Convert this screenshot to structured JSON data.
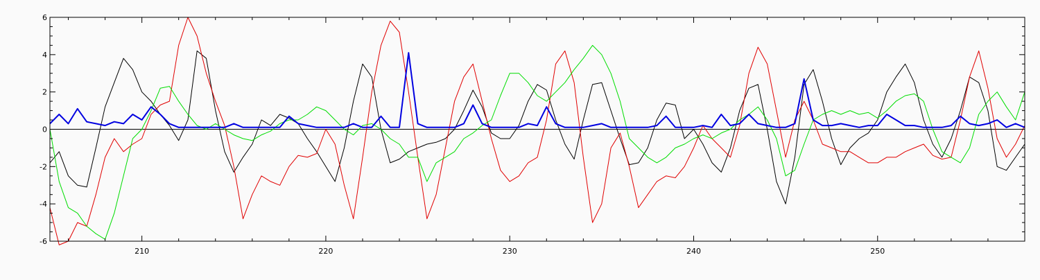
{
  "chart_data": {
    "type": "line",
    "title": "",
    "xlabel": "",
    "ylabel": "",
    "xlim": [
      205,
      258
    ],
    "ylim": [
      -6,
      6
    ],
    "x_ticks": [
      210,
      220,
      230,
      240,
      250
    ],
    "y_ticks": [
      -6,
      -4,
      -2,
      0,
      2,
      4,
      6
    ],
    "grid": false,
    "zero_line": true,
    "colors": {
      "background": "#fafafa",
      "axis": "#000000",
      "black_series": "#000000",
      "red_series": "#e00000",
      "green_series": "#00dd00",
      "blue_series": "#0000e0"
    },
    "series": [
      {
        "color": "#000000",
        "x": [
          205,
          205.5,
          206,
          206.5,
          207,
          207.5,
          208,
          208.5,
          209,
          209.5,
          210,
          210.5,
          211,
          211.5,
          212,
          212.5,
          213,
          213.5,
          214,
          214.5,
          215,
          215.5,
          216,
          216.5,
          217,
          217.5,
          218,
          218.5,
          219,
          219.5,
          220,
          220.5,
          221,
          221.5,
          222,
          222.5,
          223,
          223.5,
          224,
          224.5,
          225,
          225.5,
          226,
          226.5,
          227,
          227.5,
          228,
          228.5,
          229,
          229.5,
          230,
          230.5,
          231,
          231.5,
          232,
          232.5,
          233,
          233.5,
          234,
          234.5,
          235,
          235.5,
          236,
          236.5,
          237,
          237.5,
          238,
          238.5,
          239,
          239.5,
          240,
          240.5,
          241,
          241.5,
          242,
          242.5,
          243,
          243.5,
          244,
          244.5,
          245,
          245.5,
          246,
          246.5,
          247,
          247.5,
          248,
          248.5,
          249,
          249.5,
          250,
          250.5,
          251,
          251.5,
          252,
          252.5,
          253,
          253.5,
          254,
          254.5,
          255,
          255.5,
          256,
          256.5,
          257,
          257.5,
          258
        ],
        "values": [
          -1.8,
          -1.2,
          -2.5,
          -3,
          -3.1,
          -1,
          1.2,
          2.5,
          3.8,
          3.2,
          2,
          1.5,
          0.8,
          0.2,
          -0.6,
          0.5,
          4.2,
          3.8,
          1,
          -1.2,
          -2.3,
          -1.5,
          -0.8,
          0.5,
          0.2,
          0.8,
          0.6,
          0.3,
          -0.5,
          -1.2,
          -2,
          -2.8,
          -1,
          1.5,
          3.5,
          2.8,
          0,
          -1.8,
          -1.6,
          -1.2,
          -1,
          -0.8,
          -0.7,
          -0.5,
          0,
          1,
          2.1,
          1.2,
          -0.2,
          -0.5,
          -0.5,
          0.2,
          1.5,
          2.4,
          2.1,
          0.5,
          -0.8,
          -1.6,
          0.5,
          2.4,
          2.5,
          1,
          -0.5,
          -1.9,
          -1.8,
          -1,
          0.5,
          1.4,
          1.3,
          -0.5,
          0,
          -0.8,
          -1.8,
          -2.3,
          -1,
          1,
          2.2,
          2.4,
          0,
          -2.8,
          -4,
          -1.5,
          2.4,
          3.2,
          1.5,
          -0.5,
          -1.9,
          -1,
          -0.5,
          -0.2,
          0.5,
          2,
          2.8,
          3.5,
          2.5,
          0.5,
          -0.8,
          -1.5,
          -0.5,
          1,
          2.8,
          2.5,
          1,
          -2,
          -2.2,
          -1.5,
          -0.8
        ]
      },
      {
        "color": "#e00000",
        "x": [
          205,
          205.5,
          206,
          206.5,
          207,
          207.5,
          208,
          208.5,
          209,
          209.5,
          210,
          210.5,
          211,
          211.5,
          212,
          212.5,
          213,
          213.5,
          214,
          214.5,
          215,
          215.5,
          216,
          216.5,
          217,
          217.5,
          218,
          218.5,
          219,
          219.5,
          220,
          220.5,
          221,
          221.5,
          222,
          222.5,
          223,
          223.5,
          224,
          224.5,
          225,
          225.5,
          226,
          226.5,
          227,
          227.5,
          228,
          228.5,
          229,
          229.5,
          230,
          230.5,
          231,
          231.5,
          232,
          232.5,
          233,
          233.5,
          234,
          234.5,
          235,
          235.5,
          236,
          236.5,
          237,
          237.5,
          238,
          238.5,
          239,
          239.5,
          240,
          240.5,
          241,
          241.5,
          242,
          242.5,
          243,
          243.5,
          244,
          244.5,
          245,
          245.5,
          246,
          246.5,
          247,
          247.5,
          248,
          248.5,
          249,
          249.5,
          250,
          250.5,
          251,
          251.5,
          252,
          252.5,
          253,
          253.5,
          254,
          254.5,
          255,
          255.5,
          256,
          256.5,
          257,
          257.5,
          258
        ],
        "values": [
          -4.2,
          -6.2,
          -6,
          -5,
          -5.2,
          -3.5,
          -1.5,
          -0.5,
          -1.2,
          -0.8,
          -0.5,
          0.8,
          1.3,
          1.5,
          4.5,
          6,
          5,
          3,
          1.5,
          0.2,
          -2,
          -4.8,
          -3.5,
          -2.5,
          -2.8,
          -3,
          -2,
          -1.4,
          -1.5,
          -1.3,
          0,
          -0.8,
          -3,
          -4.8,
          -1.5,
          2,
          4.5,
          5.8,
          5.2,
          2,
          -1.5,
          -4.8,
          -3.5,
          -1,
          1.5,
          2.8,
          3.5,
          1.5,
          -0.5,
          -2.2,
          -2.8,
          -2.5,
          -1.8,
          -1.5,
          0.5,
          3.5,
          4.2,
          2.5,
          -1.5,
          -5,
          -4,
          -1,
          -0.2,
          -2,
          -4.2,
          -3.5,
          -2.8,
          -2.5,
          -2.6,
          -2,
          -1,
          0.2,
          -0.5,
          -1,
          -1.5,
          0.2,
          3,
          4.4,
          3.5,
          1,
          -1.5,
          0.5,
          1.5,
          0.5,
          -0.8,
          -1,
          -1.2,
          -1.2,
          -1.5,
          -1.8,
          -1.8,
          -1.5,
          -1.5,
          -1.2,
          -1,
          -0.8,
          -1.4,
          -1.6,
          -1.5,
          0.5,
          2.8,
          4.2,
          2.2,
          -0.5,
          -1.5,
          -0.8,
          0.2
        ]
      },
      {
        "color": "#00dd00",
        "x": [
          205,
          205.5,
          206,
          206.5,
          207,
          207.5,
          208,
          208.5,
          209,
          209.5,
          210,
          210.5,
          211,
          211.5,
          212,
          212.5,
          213,
          213.5,
          214,
          214.5,
          215,
          215.5,
          216,
          216.5,
          217,
          217.5,
          218,
          218.5,
          219,
          219.5,
          220,
          220.5,
          221,
          221.5,
          222,
          222.5,
          223,
          223.5,
          224,
          224.5,
          225,
          225.5,
          226,
          226.5,
          227,
          227.5,
          228,
          228.5,
          229,
          229.5,
          230,
          230.5,
          231,
          231.5,
          232,
          232.5,
          233,
          233.5,
          234,
          234.5,
          235,
          235.5,
          236,
          236.5,
          237,
          237.5,
          238,
          238.5,
          239,
          239.5,
          240,
          240.5,
          241,
          241.5,
          242,
          242.5,
          243,
          243.5,
          244,
          244.5,
          245,
          245.5,
          246,
          246.5,
          247,
          247.5,
          248,
          248.5,
          249,
          249.5,
          250,
          250.5,
          251,
          251.5,
          252,
          252.5,
          253,
          253.5,
          254,
          254.5,
          255,
          255.5,
          256,
          256.5,
          257,
          257.5,
          258
        ],
        "values": [
          0,
          -2.8,
          -4.2,
          -4.5,
          -5.2,
          -5.6,
          -5.9,
          -4.5,
          -2.5,
          -0.5,
          0,
          1,
          2.2,
          2.3,
          1.5,
          0.8,
          0.2,
          0,
          0.3,
          0,
          -0.3,
          -0.5,
          -0.6,
          -0.3,
          -0.1,
          0.3,
          0.5,
          0.5,
          0.8,
          1.2,
          1,
          0.5,
          0,
          -0.3,
          0.2,
          0.3,
          0,
          -0.5,
          -0.8,
          -1.5,
          -1.5,
          -2.8,
          -1.8,
          -1.5,
          -1.2,
          -0.5,
          -0.2,
          0.2,
          0.5,
          1.8,
          3,
          3,
          2.5,
          1.8,
          1.5,
          2,
          2.5,
          3.2,
          3.8,
          4.5,
          4,
          3,
          1.5,
          -0.5,
          -1,
          -1.5,
          -1.8,
          -1.5,
          -1,
          -0.8,
          -0.5,
          -0.3,
          -0.5,
          -0.2,
          0,
          0.5,
          0.8,
          1.2,
          0.5,
          -0.5,
          -2.5,
          -2.2,
          -0.8,
          0.5,
          0.8,
          1,
          0.8,
          1,
          0.8,
          0.9,
          0.6,
          1,
          1.5,
          1.8,
          1.9,
          1.5,
          0,
          -1.2,
          -1.5,
          -1.8,
          -1,
          0.8,
          1.5,
          2,
          1.2,
          0.5,
          2
        ]
      },
      {
        "color": "#0000e0",
        "x": [
          205,
          205.5,
          206,
          206.5,
          207,
          207.5,
          208,
          208.5,
          209,
          209.5,
          210,
          210.5,
          211,
          211.5,
          212,
          212.5,
          213,
          213.5,
          214,
          214.5,
          215,
          215.5,
          216,
          216.5,
          217,
          217.5,
          218,
          218.5,
          219,
          219.5,
          220,
          220.5,
          221,
          221.5,
          222,
          222.5,
          223,
          223.5,
          224,
          224.5,
          225,
          225.5,
          226,
          226.5,
          227,
          227.5,
          228,
          228.5,
          229,
          229.5,
          230,
          230.5,
          231,
          231.5,
          232,
          232.5,
          233,
          233.5,
          234,
          234.5,
          235,
          235.5,
          236,
          236.5,
          237,
          237.5,
          238,
          238.5,
          239,
          239.5,
          240,
          240.5,
          241,
          241.5,
          242,
          242.5,
          243,
          243.5,
          244,
          244.5,
          245,
          245.5,
          246,
          246.5,
          247,
          247.5,
          248,
          248.5,
          249,
          249.5,
          250,
          250.5,
          251,
          251.5,
          252,
          252.5,
          253,
          253.5,
          254,
          254.5,
          255,
          255.5,
          256,
          256.5,
          257,
          257.5,
          258
        ],
        "values": [
          0.3,
          0.8,
          0.3,
          1.1,
          0.4,
          0.3,
          0.2,
          0.4,
          0.3,
          0.8,
          0.5,
          1.2,
          0.8,
          0.3,
          0.1,
          0.1,
          0.1,
          0.1,
          0.1,
          0.1,
          0.3,
          0.1,
          0.1,
          0.1,
          0.1,
          0.1,
          0.7,
          0.3,
          0.2,
          0.1,
          0.1,
          0.1,
          0.1,
          0.3,
          0.1,
          0.1,
          0.7,
          0.1,
          0.1,
          4.1,
          0.3,
          0.1,
          0.1,
          0.1,
          0.1,
          0.3,
          1.3,
          0.3,
          0.1,
          0.1,
          0.1,
          0.1,
          0.3,
          0.2,
          1.2,
          0.3,
          0.1,
          0.1,
          0.1,
          0.2,
          0.3,
          0.1,
          0.1,
          0.1,
          0.1,
          0.1,
          0.2,
          0.7,
          0.1,
          0.1,
          0.1,
          0.2,
          0.1,
          0.8,
          0.2,
          0.3,
          0.8,
          0.3,
          0.2,
          0.1,
          0.1,
          0.3,
          2.7,
          0.5,
          0.2,
          0.2,
          0.3,
          0.2,
          0.1,
          0.2,
          0.2,
          0.8,
          0.5,
          0.2,
          0.2,
          0.1,
          0.1,
          0.1,
          0.2,
          0.7,
          0.3,
          0.2,
          0.3,
          0.5,
          0.1,
          0.3,
          0.1
        ]
      }
    ]
  }
}
